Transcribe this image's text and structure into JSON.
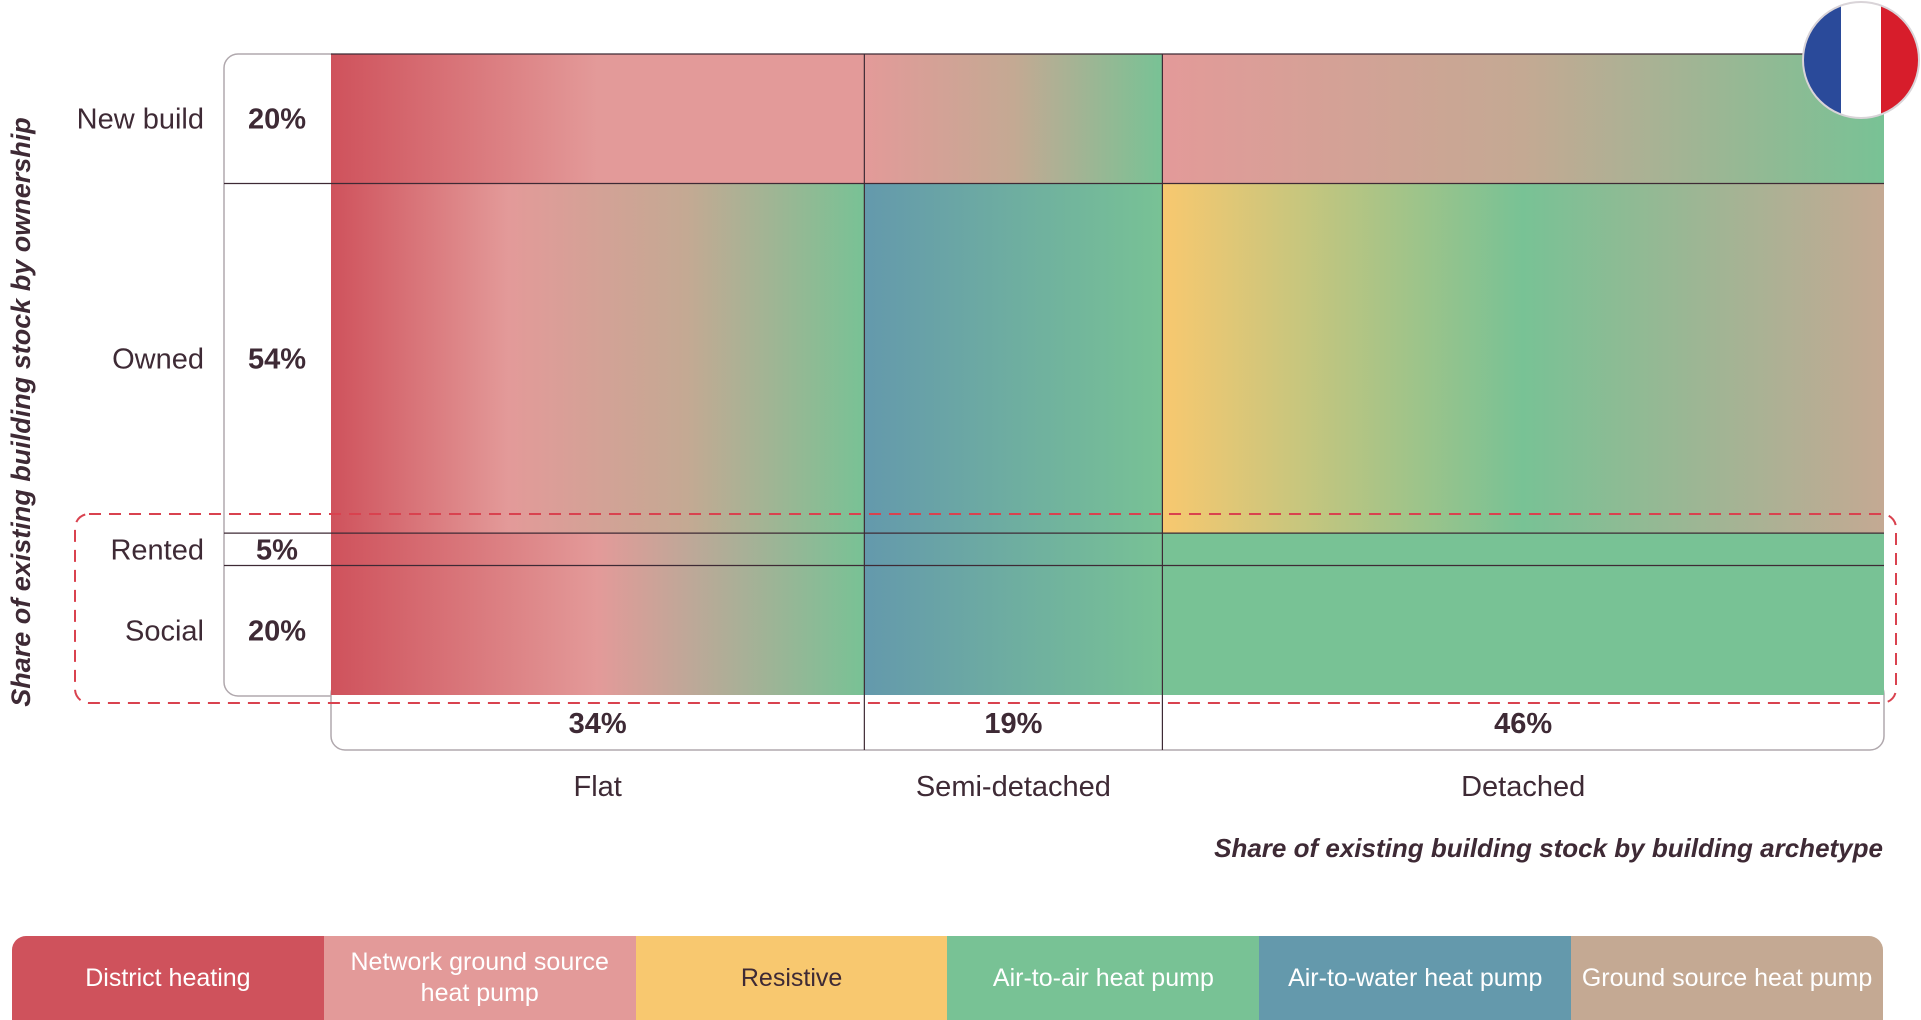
{
  "chart_data": {
    "type": "heatmap",
    "description_title": "",
    "ylabel": "Share of existing building stock by ownership",
    "xlabel": "Share of existing building stock by building archetype",
    "rows": [
      {
        "label": "New build",
        "share": 20,
        "share_label": "20%"
      },
      {
        "label": "Owned",
        "share": 54,
        "share_label": "54%"
      },
      {
        "label": "Rented",
        "share": 5,
        "share_label": "5%"
      },
      {
        "label": "Social",
        "share": 20,
        "share_label": "20%"
      }
    ],
    "columns": [
      {
        "label": "Flat",
        "share": 34,
        "share_label": "34%"
      },
      {
        "label": "Semi-detached",
        "share": 19,
        "share_label": "19%"
      },
      {
        "label": "Detached",
        "share": 46,
        "share_label": "46%"
      }
    ],
    "highlight_rows": [
      "Rented",
      "Social"
    ],
    "cells": [
      {
        "row": "New build",
        "column": "Flat",
        "gradient": [
          "District heating",
          "Network ground source heat pump",
          "Network ground source heat pump"
        ]
      },
      {
        "row": "New build",
        "column": "Semi-detached",
        "gradient": [
          "Network ground source heat pump",
          "Ground source heat pump",
          "Air-to-air heat pump"
        ]
      },
      {
        "row": "New build",
        "column": "Detached",
        "gradient": [
          "Network ground source heat pump",
          "Ground source heat pump",
          "Air-to-air heat pump"
        ]
      },
      {
        "row": "Owned",
        "column": "Flat",
        "gradient": [
          "District heating",
          "Network ground source heat pump",
          "Ground source heat pump",
          "Air-to-air heat pump"
        ]
      },
      {
        "row": "Owned",
        "column": "Semi-detached",
        "gradient": [
          "Air-to-water heat pump",
          "Air-to-air heat pump"
        ]
      },
      {
        "row": "Owned",
        "column": "Detached",
        "gradient": [
          "Resistive",
          "Air-to-air heat pump",
          "Ground source heat pump"
        ]
      },
      {
        "row": "Rented",
        "column": "Flat",
        "gradient": [
          "District heating",
          "Network ground source heat pump",
          "Air-to-air heat pump"
        ]
      },
      {
        "row": "Rented",
        "column": "Semi-detached",
        "gradient": [
          "Air-to-water heat pump",
          "Air-to-air heat pump"
        ]
      },
      {
        "row": "Rented",
        "column": "Detached",
        "gradient": [
          "Air-to-air heat pump"
        ]
      },
      {
        "row": "Social",
        "column": "Flat",
        "gradient": [
          "District heating",
          "Network ground source heat pump",
          "Air-to-air heat pump"
        ]
      },
      {
        "row": "Social",
        "column": "Semi-detached",
        "gradient": [
          "Air-to-water heat pump",
          "Air-to-air heat pump"
        ]
      },
      {
        "row": "Social",
        "column": "Detached",
        "gradient": [
          "Air-to-air heat pump"
        ]
      }
    ],
    "legend_placement": "bottom",
    "legend": [
      {
        "name": "District heating",
        "label": "District heating",
        "color": "#cf525c"
      },
      {
        "name": "Network ground source heat pump",
        "label": "Network ground source heat pump",
        "color": "#e39a99"
      },
      {
        "name": "Resistive",
        "label": "Resistive",
        "color": "#f8c86f"
      },
      {
        "name": "Air-to-air heat pump",
        "label": "Air-to-air heat pump",
        "color": "#78c295"
      },
      {
        "name": "Air-to-water heat pump",
        "label": "Air-to-water heat pump",
        "color": "#6499ac"
      },
      {
        "name": "Ground source heat pump",
        "label": "Ground source heat pump",
        "color": "#c4a993"
      }
    ]
  },
  "flag": {
    "icon": "france-flag-icon",
    "colors": [
      "#2a4a9a",
      "#ffffff",
      "#d71d2b"
    ]
  },
  "colors": {
    "text": "#3e2a35",
    "grid": "#3e2a35",
    "highlight_dash": "#d9424f",
    "box_border": "#b0a8ad"
  }
}
